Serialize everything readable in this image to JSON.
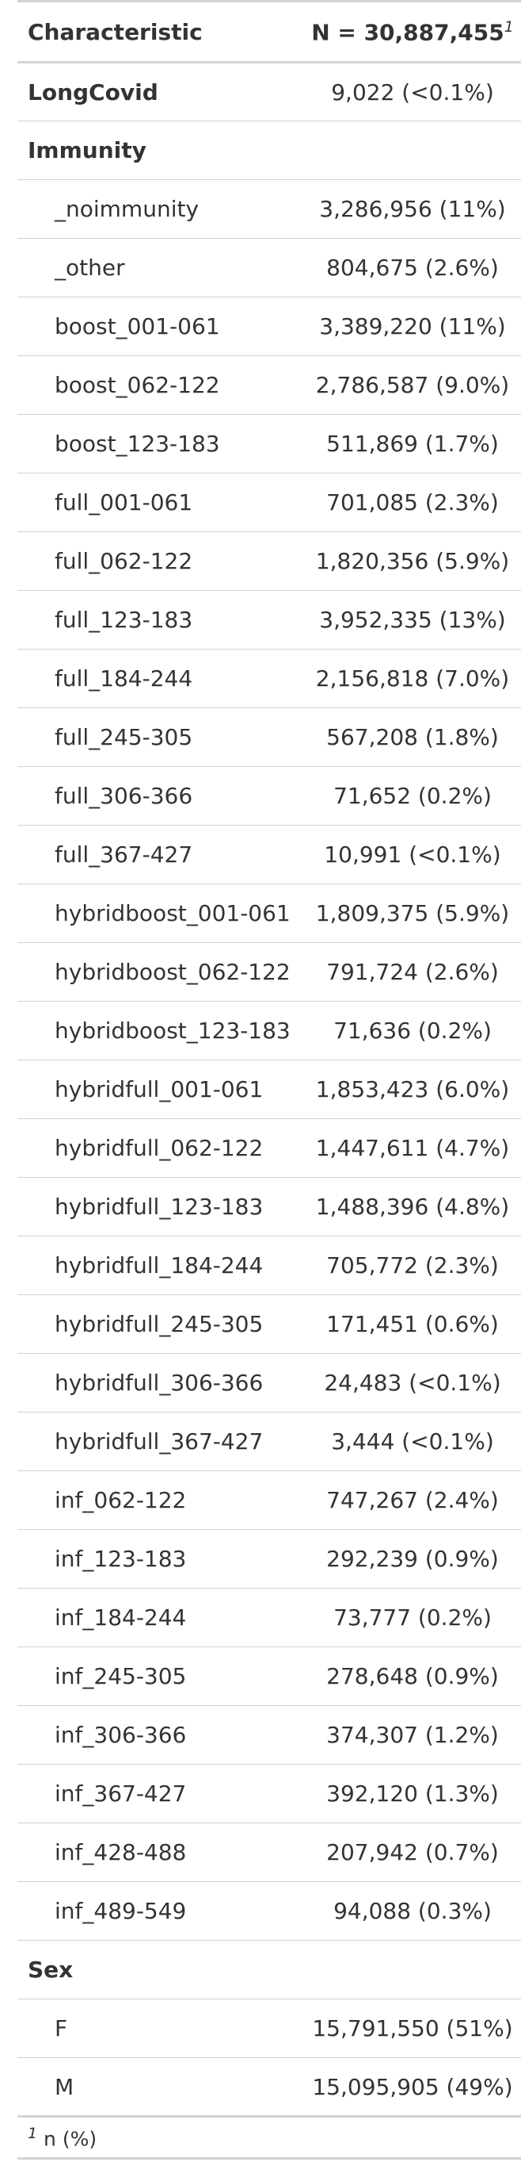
{
  "header": {
    "characteristic": "Characteristic",
    "n": "N = 30,887,455",
    "footnote_mark": "1"
  },
  "rows": [
    {
      "type": "var",
      "label": "LongCovid",
      "value": "9,022 (<0.1%)"
    },
    {
      "type": "var",
      "label": "Immunity",
      "value": ""
    },
    {
      "type": "level",
      "label": "_noimmunity",
      "value": "3,286,956 (11%)"
    },
    {
      "type": "level",
      "label": "_other",
      "value": "804,675 (2.6%)"
    },
    {
      "type": "level",
      "label": "boost_001-061",
      "value": "3,389,220 (11%)"
    },
    {
      "type": "level",
      "label": "boost_062-122",
      "value": "2,786,587 (9.0%)"
    },
    {
      "type": "level",
      "label": "boost_123-183",
      "value": "511,869 (1.7%)"
    },
    {
      "type": "level",
      "label": "full_001-061",
      "value": "701,085 (2.3%)"
    },
    {
      "type": "level",
      "label": "full_062-122",
      "value": "1,820,356 (5.9%)"
    },
    {
      "type": "level",
      "label": "full_123-183",
      "value": "3,952,335 (13%)"
    },
    {
      "type": "level",
      "label": "full_184-244",
      "value": "2,156,818 (7.0%)"
    },
    {
      "type": "level",
      "label": "full_245-305",
      "value": "567,208 (1.8%)"
    },
    {
      "type": "level",
      "label": "full_306-366",
      "value": "71,652 (0.2%)"
    },
    {
      "type": "level",
      "label": "full_367-427",
      "value": "10,991 (<0.1%)"
    },
    {
      "type": "level",
      "label": "hybridboost_001-061",
      "value": "1,809,375 (5.9%)"
    },
    {
      "type": "level",
      "label": "hybridboost_062-122",
      "value": "791,724 (2.6%)"
    },
    {
      "type": "level",
      "label": "hybridboost_123-183",
      "value": "71,636 (0.2%)"
    },
    {
      "type": "level",
      "label": "hybridfull_001-061",
      "value": "1,853,423 (6.0%)"
    },
    {
      "type": "level",
      "label": "hybridfull_062-122",
      "value": "1,447,611 (4.7%)"
    },
    {
      "type": "level",
      "label": "hybridfull_123-183",
      "value": "1,488,396 (4.8%)"
    },
    {
      "type": "level",
      "label": "hybridfull_184-244",
      "value": "705,772 (2.3%)"
    },
    {
      "type": "level",
      "label": "hybridfull_245-305",
      "value": "171,451 (0.6%)"
    },
    {
      "type": "level",
      "label": "hybridfull_306-366",
      "value": "24,483 (<0.1%)"
    },
    {
      "type": "level",
      "label": "hybridfull_367-427",
      "value": "3,444 (<0.1%)"
    },
    {
      "type": "level",
      "label": "inf_062-122",
      "value": "747,267 (2.4%)"
    },
    {
      "type": "level",
      "label": "inf_123-183",
      "value": "292,239 (0.9%)"
    },
    {
      "type": "level",
      "label": "inf_184-244",
      "value": "73,777 (0.2%)"
    },
    {
      "type": "level",
      "label": "inf_245-305",
      "value": "278,648 (0.9%)"
    },
    {
      "type": "level",
      "label": "inf_306-366",
      "value": "374,307 (1.2%)"
    },
    {
      "type": "level",
      "label": "inf_367-427",
      "value": "392,120 (1.3%)"
    },
    {
      "type": "level",
      "label": "inf_428-488",
      "value": "207,942 (0.7%)"
    },
    {
      "type": "level",
      "label": "inf_489-549",
      "value": "94,088 (0.3%)"
    },
    {
      "type": "var",
      "label": "Sex",
      "value": ""
    },
    {
      "type": "level",
      "label": "F",
      "value": "15,791,550 (51%)"
    },
    {
      "type": "level",
      "label": "M",
      "value": "15,095,905 (49%)"
    }
  ],
  "footnote": {
    "mark": "1",
    "text": " n (%)"
  }
}
